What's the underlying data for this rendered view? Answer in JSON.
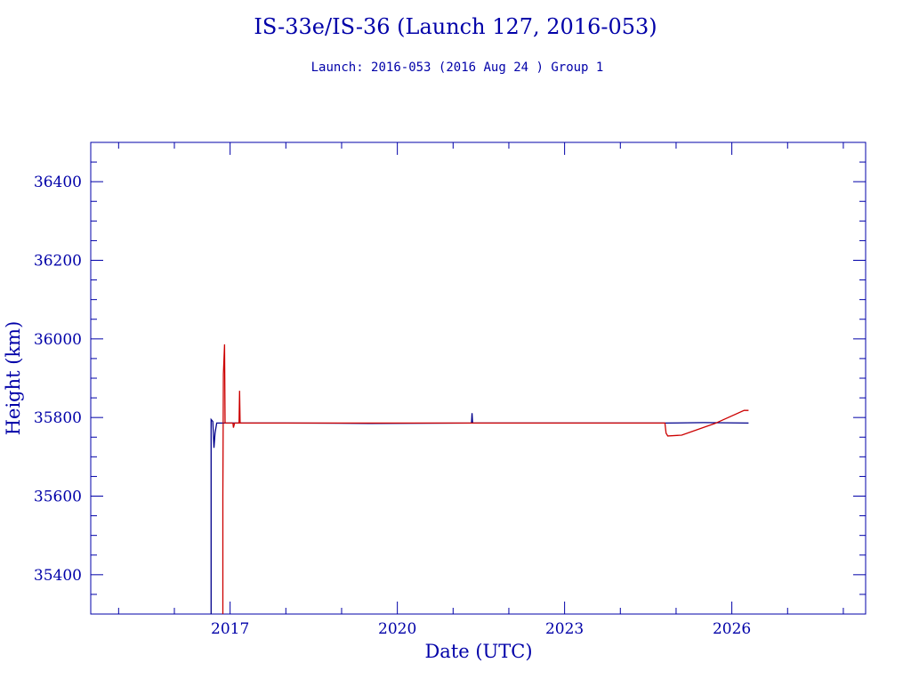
{
  "chart_data": {
    "type": "line",
    "title": "IS-33e/IS-36 (Launch 127, 2016-053)",
    "subtitle": "Launch: 2016-053  (2016 Aug 24 )  Group 1",
    "xlabel": "Date (UTC)",
    "ylabel": "Height (km)",
    "xlim": [
      2014.5,
      2028.4
    ],
    "ylim": [
      35300,
      36500
    ],
    "x_ticks": [
      2017,
      2020,
      2023,
      2026
    ],
    "x_tick_labels": [
      "2017",
      "2020",
      "2023",
      "2026"
    ],
    "y_ticks": [
      35400,
      35600,
      35800,
      36000,
      36200,
      36400
    ],
    "y_tick_labels": [
      "35400",
      "35600",
      "35800",
      "36000",
      "36200",
      "36400"
    ],
    "grid": false,
    "axis_color": "#0000a8",
    "series": [
      {
        "color": "#00008b",
        "points": [
          [
            2016.66,
            35300
          ],
          [
            2016.66,
            35795
          ],
          [
            2016.69,
            35790
          ],
          [
            2016.71,
            35723
          ],
          [
            2016.73,
            35760
          ],
          [
            2016.76,
            35786
          ],
          [
            2018.0,
            35786
          ],
          [
            2019.5,
            35785
          ],
          [
            2021.33,
            35786
          ],
          [
            2021.34,
            35811
          ],
          [
            2021.35,
            35786
          ],
          [
            2023.0,
            35786
          ],
          [
            2024.8,
            35786
          ],
          [
            2025.5,
            35787
          ],
          [
            2026.3,
            35786
          ]
        ]
      },
      {
        "color": "#cc0000",
        "points": [
          [
            2016.87,
            35300
          ],
          [
            2016.87,
            35600
          ],
          [
            2016.88,
            35910
          ],
          [
            2016.9,
            35986
          ],
          [
            2016.91,
            35786
          ],
          [
            2017.05,
            35786
          ],
          [
            2017.06,
            35774
          ],
          [
            2017.08,
            35786
          ],
          [
            2017.16,
            35786
          ],
          [
            2017.17,
            35868
          ],
          [
            2017.18,
            35786
          ],
          [
            2019.0,
            35786
          ],
          [
            2021.0,
            35786
          ],
          [
            2023.0,
            35786
          ],
          [
            2024.8,
            35786
          ],
          [
            2024.82,
            35760
          ],
          [
            2024.85,
            35753
          ],
          [
            2025.1,
            35755
          ],
          [
            2025.7,
            35785
          ],
          [
            2026.22,
            35818
          ],
          [
            2026.3,
            35818
          ]
        ]
      }
    ]
  }
}
